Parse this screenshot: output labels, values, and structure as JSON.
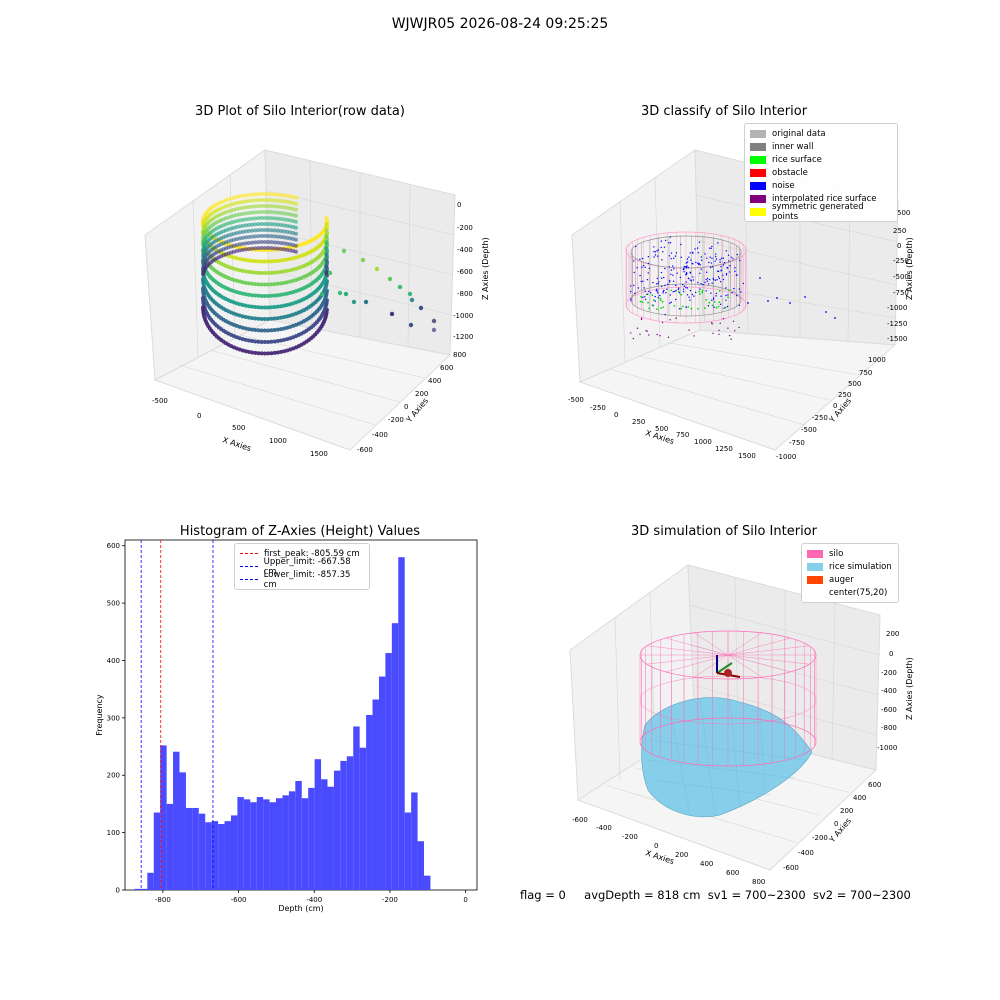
{
  "figure": {
    "suptitle": "WJWJR05 2026-08-24 09:25:25"
  },
  "panels": {
    "raw": {
      "title": "3D Plot of Silo Interior(row data)",
      "xlabel": "X Axies",
      "ylabel": "Y Axies",
      "zlabel": "Z Axies (Depth)",
      "xticks": [
        "-500",
        "0",
        "500",
        "1000",
        "1500"
      ],
      "yticks": [
        "800",
        "600",
        "400",
        "200",
        "0",
        "-200",
        "-400",
        "-600"
      ],
      "zticks": [
        "0",
        "-200",
        "-400",
        "-600",
        "-800",
        "-1000",
        "-1200"
      ]
    },
    "classify": {
      "title": "3D classify of Silo Interior",
      "xlabel": "X Axies",
      "ylabel": "Y Axies",
      "zlabel": "Z Axies (Depth)",
      "xticks": [
        "-500",
        "-250",
        "0",
        "250",
        "500",
        "750",
        "1000",
        "1250",
        "1500"
      ],
      "yticks": [
        "1000",
        "750",
        "500",
        "250",
        "0",
        "-250",
        "-500",
        "-750",
        "-1000"
      ],
      "zticks": [
        "500",
        "250",
        "0",
        "-250",
        "-500",
        "-750",
        "-1000",
        "-1250",
        "-1500"
      ],
      "legend": [
        {
          "label": "original data",
          "color": "#b3b3b3"
        },
        {
          "label": "inner wall",
          "color": "#808080"
        },
        {
          "label": "rice surface",
          "color": "#00ff00"
        },
        {
          "label": "obstacle",
          "color": "#ff0000"
        },
        {
          "label": "noise",
          "color": "#0000ff"
        },
        {
          "label": "interpolated rice surface",
          "color": "#800080"
        },
        {
          "label": "symmetric generated points",
          "color": "#ffff00"
        }
      ]
    },
    "simulation": {
      "title": "3D simulation of Silo Interior",
      "xlabel": "X Axies",
      "ylabel": "Y Axies",
      "zlabel": "Z Axies (Depth)",
      "xticks": [
        "-600",
        "-400",
        "-200",
        "0",
        "200",
        "400",
        "600",
        "800"
      ],
      "yticks": [
        "600",
        "400",
        "200",
        "0",
        "-200",
        "-400",
        "-600"
      ],
      "zticks": [
        "200",
        "0",
        "-200",
        "-400",
        "-600",
        "-800",
        "-1000"
      ],
      "legend": [
        {
          "label": "silo",
          "color": "#ff69b4"
        },
        {
          "label": "rice simulation",
          "color": "#87ceeb"
        },
        {
          "label": "auger",
          "color": "#ff4500"
        },
        {
          "label": "center(75,20)",
          "color": ""
        }
      ]
    }
  },
  "footer": {
    "flag": "flag = 0",
    "avg": "avgDepth = 818 cm",
    "sv1": "sv1 = 700~2300",
    "sv2": "sv2 = 700~2300"
  },
  "chart_data": {
    "type": "bar",
    "title": "Histogram of Z-Axies (Height) Values",
    "xlabel": "Depth (cm)",
    "ylabel": "Frequency",
    "xlim": [
      -900,
      30
    ],
    "ylim": [
      0,
      610
    ],
    "xticks": [
      -800,
      -600,
      -400,
      -200,
      0
    ],
    "yticks": [
      0,
      100,
      200,
      300,
      400,
      500,
      600
    ],
    "bin_width": 17,
    "bin_starts": [
      -875,
      -858,
      -841,
      -824,
      -807,
      -790,
      -773,
      -756,
      -739,
      -722,
      -705,
      -688,
      -671,
      -654,
      -637,
      -620,
      -603,
      -586,
      -569,
      -552,
      -535,
      -518,
      -501,
      -484,
      -467,
      -450,
      -433,
      -416,
      -399,
      -382,
      -365,
      -348,
      -331,
      -314,
      -297,
      -280,
      -263,
      -246,
      -229,
      -212,
      -195,
      -178,
      -161,
      -144,
      -127,
      -110,
      -93,
      -76,
      -59,
      -42,
      -25
    ],
    "counts": [
      2,
      2,
      30,
      135,
      252,
      150,
      241,
      205,
      143,
      143,
      133,
      118,
      120,
      115,
      120,
      130,
      162,
      158,
      153,
      162,
      158,
      153,
      160,
      165,
      172,
      190,
      160,
      178,
      228,
      193,
      180,
      208,
      225,
      233,
      285,
      248,
      305,
      332,
      372,
      413,
      465,
      580,
      135,
      170,
      85,
      25,
      0,
      0,
      0,
      0,
      0
    ],
    "vlines": [
      {
        "label": "first_peak: -805.59 cm",
        "x": -805.59,
        "color": "#ff0000"
      },
      {
        "label": "Upper_limit: -667.58 cm",
        "x": -667.58,
        "color": "#0000ff"
      },
      {
        "label": "Lower_limit: -857.35 cm",
        "x": -857.35,
        "color": "#0000ff"
      }
    ],
    "bar_color": "#4a4aff"
  }
}
